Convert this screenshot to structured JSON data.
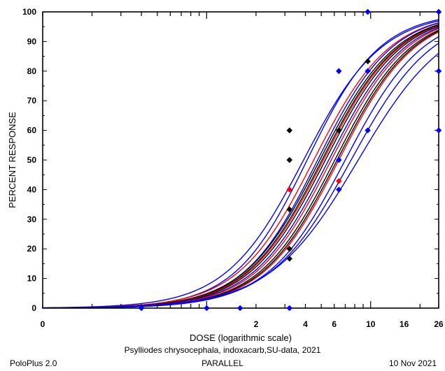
{
  "chart_data": {
    "type": "scatter",
    "title": "",
    "xlabel": "DOSE  (logarithmic scale)",
    "ylabel": "PERCENT  RESPONSE",
    "x_scale": "log",
    "xlim": [
      0.1,
      26
    ],
    "ylim": [
      0,
      100
    ],
    "x_tick_labels": [
      {
        "value": 0.1,
        "label": "0"
      },
      {
        "value": 2,
        "label": "2"
      },
      {
        "value": 4,
        "label": "4"
      },
      {
        "value": 6,
        "label": "6"
      },
      {
        "value": 10,
        "label": "10"
      },
      {
        "value": 16,
        "label": "16"
      },
      {
        "value": 26,
        "label": "26"
      }
    ],
    "y_ticks": [
      0,
      10,
      20,
      30,
      40,
      50,
      60,
      70,
      80,
      90,
      100
    ],
    "grid": false,
    "curves": [
      {
        "color": "#0000ff",
        "ld50": 3.9,
        "slope": 4.2
      },
      {
        "color": "#0000ff",
        "ld50": 4.1,
        "slope": 4.5
      },
      {
        "color": "#ff0000",
        "ld50": 4.5,
        "slope": 4.3
      },
      {
        "color": "#0000ff",
        "ld50": 4.75,
        "slope": 4.4
      },
      {
        "color": "#000000",
        "ld50": 4.9,
        "slope": 4.3
      },
      {
        "color": "#000000",
        "ld50": 5.05,
        "slope": 4.3
      },
      {
        "color": "#ff0000",
        "ld50": 5.15,
        "slope": 4.3
      },
      {
        "color": "#000000",
        "ld50": 5.3,
        "slope": 4.3
      },
      {
        "color": "#0000ff",
        "ld50": 5.55,
        "slope": 4.3
      },
      {
        "color": "#ff0000",
        "ld50": 5.75,
        "slope": 4.3
      },
      {
        "color": "#000000",
        "ld50": 6.05,
        "slope": 4.3
      },
      {
        "color": "#000000",
        "ld50": 6.25,
        "slope": 4.3
      },
      {
        "color": "#ff0000",
        "ld50": 6.4,
        "slope": 4.3
      },
      {
        "color": "#0000ff",
        "ld50": 7.0,
        "slope": 4.2
      },
      {
        "color": "#0000ff",
        "ld50": 7.6,
        "slope": 4.0
      },
      {
        "color": "#0000ff",
        "ld50": 8.4,
        "slope": 3.7
      }
    ],
    "series": [
      {
        "color": "#000000",
        "points": [
          [
            3.2,
            60
          ],
          [
            3.2,
            50
          ],
          [
            3.2,
            33.3
          ],
          [
            3.2,
            20
          ],
          [
            3.2,
            16.7
          ],
          [
            6.4,
            60
          ],
          [
            9.6,
            83.3
          ],
          [
            26,
            100
          ]
        ]
      },
      {
        "color": "#ff0000",
        "points": [
          [
            3.2,
            40
          ],
          [
            6.4,
            42.9
          ],
          [
            9.6,
            80
          ]
        ]
      },
      {
        "color": "#0000ff",
        "points": [
          [
            0.4,
            0
          ],
          [
            1.0,
            0
          ],
          [
            1.6,
            0
          ],
          [
            3.2,
            0
          ],
          [
            6.4,
            80
          ],
          [
            6.4,
            50
          ],
          [
            6.4,
            40
          ],
          [
            9.6,
            100
          ],
          [
            9.6,
            80
          ],
          [
            9.6,
            60
          ],
          [
            26,
            100
          ],
          [
            26,
            80
          ],
          [
            26,
            60
          ]
        ]
      }
    ]
  },
  "footer": {
    "caption": "Psylliodes chrysocephala, indoxacarb,SU-data, 2021",
    "software": "PoloPlus 2.0",
    "model": "PARALLEL",
    "date": "10 Nov 2021"
  }
}
